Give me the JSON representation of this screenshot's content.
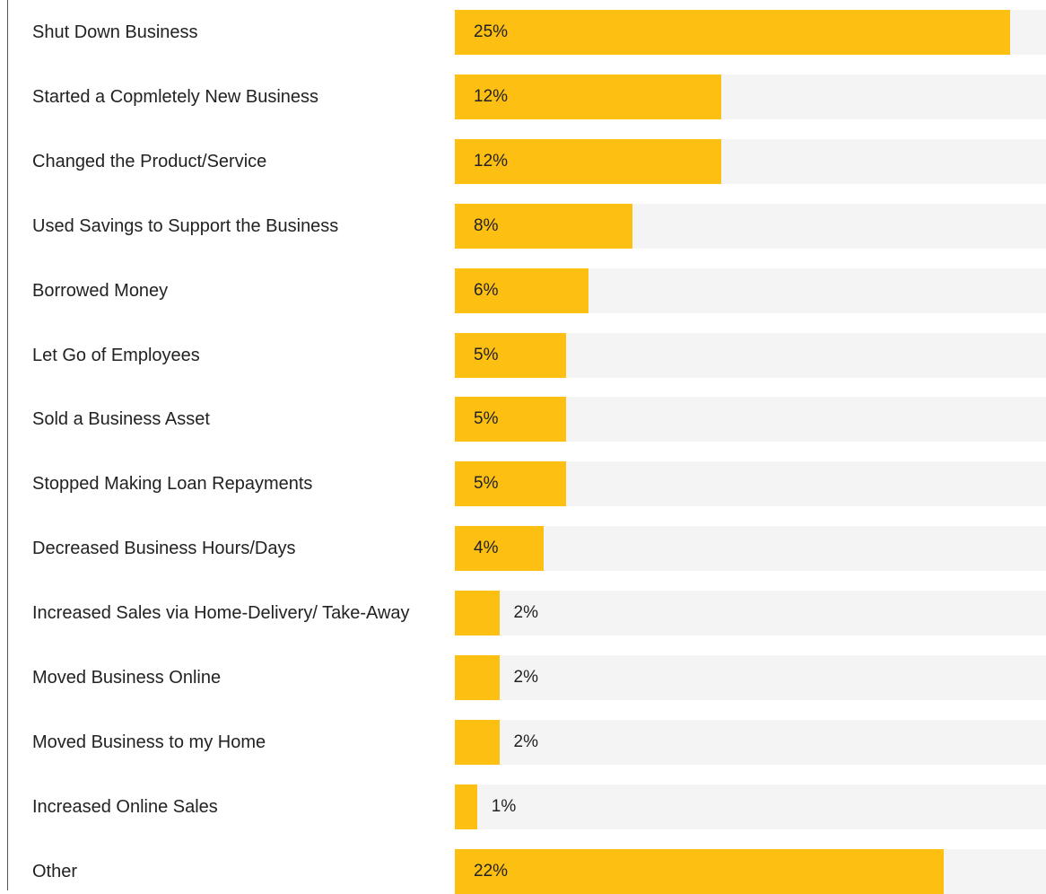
{
  "chart_data": {
    "type": "bar",
    "orientation": "horizontal",
    "color": "#fcbf12",
    "categories": [
      "Shut Down Business",
      "Started a Copmletely New Business",
      "Changed the Product/Service",
      "Used Savings to Support the Business",
      "Borrowed Money",
      "Let Go of Employees",
      "Sold a Business Asset",
      "Stopped Making Loan Repayments",
      "Decreased Business Hours/Days",
      "Increased Sales via Home-Delivery/ Take-Away",
      "Moved Business Online",
      "Moved Business to my Home",
      "Increased Online Sales",
      "Other"
    ],
    "values": [
      25,
      12,
      12,
      8,
      6,
      5,
      5,
      5,
      4,
      2,
      2,
      2,
      1,
      22
    ],
    "value_labels": [
      "25%",
      "12%",
      "12%",
      "8%",
      "6%",
      "5%",
      "5%",
      "5%",
      "4%",
      "2%",
      "2%",
      "2%",
      "1%",
      "22%"
    ]
  }
}
